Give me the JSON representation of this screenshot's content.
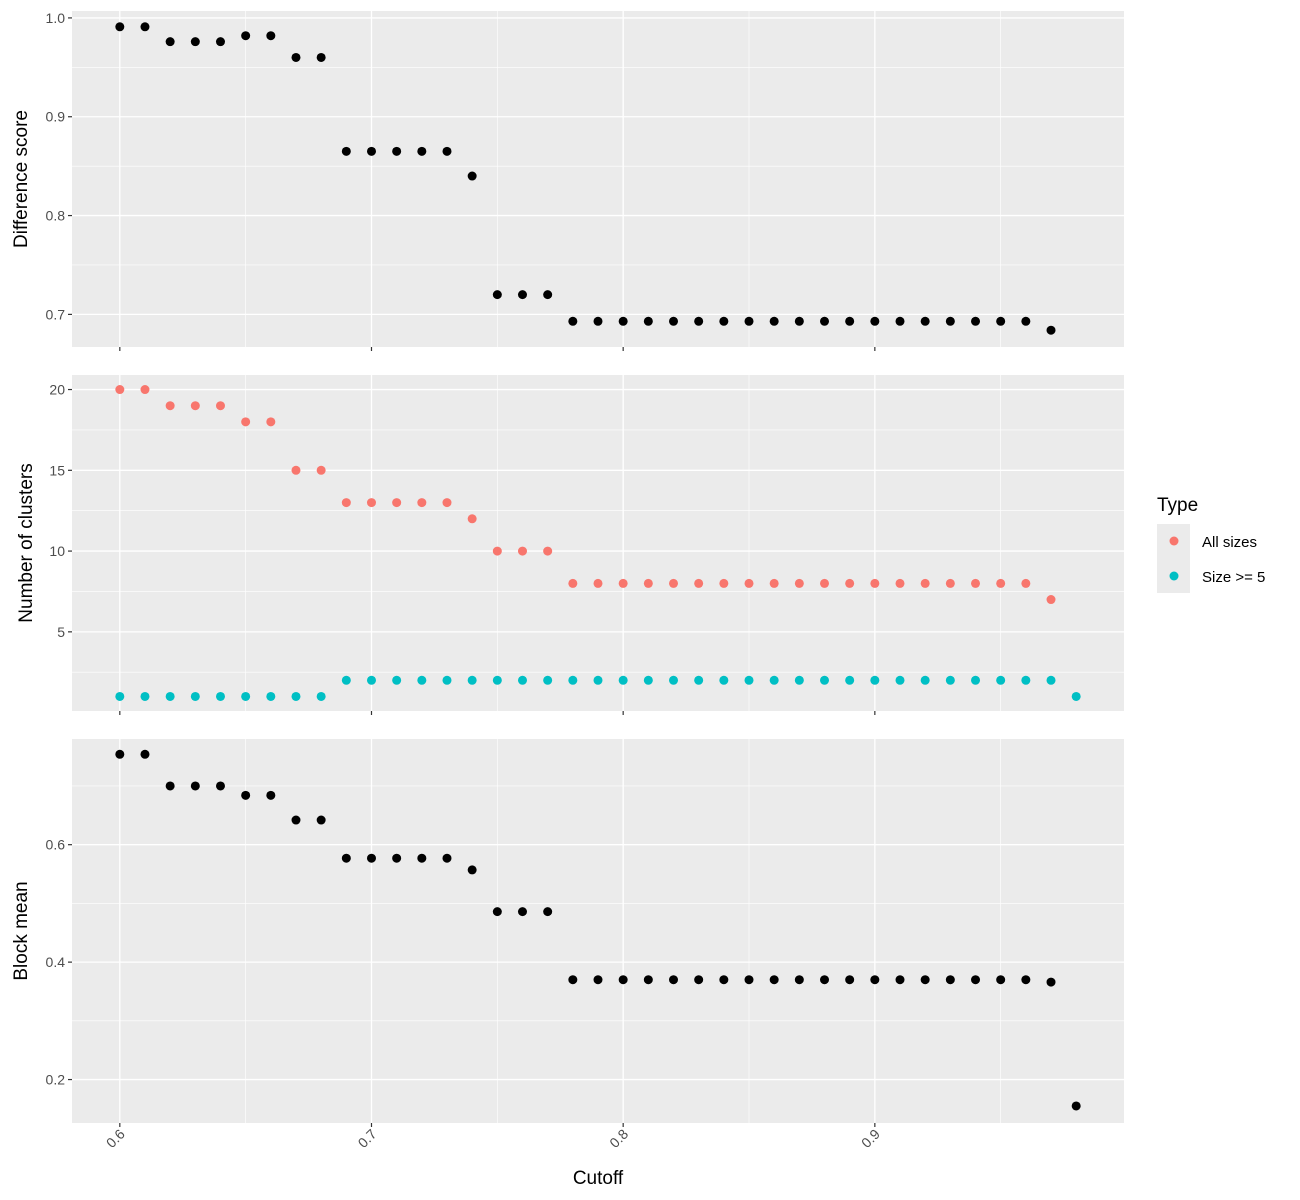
{
  "chart_data": [
    {
      "type": "scatter",
      "ylabel": "Difference score",
      "xlim": [
        0.581,
        0.999
      ],
      "ylim": [
        0.667,
        1.007
      ],
      "x_ticks": [
        "0.6",
        "0.7",
        "0.8",
        "0.9"
      ],
      "y_ticks": [
        "0.7",
        "0.8",
        "0.9",
        "1.0"
      ],
      "series": [
        {
          "color": "#000000",
          "x": [
            0.6,
            0.61,
            0.62,
            0.63,
            0.64,
            0.65,
            0.66,
            0.67,
            0.68,
            0.69,
            0.7,
            0.71,
            0.72,
            0.73,
            0.74,
            0.75,
            0.76,
            0.77,
            0.78,
            0.79,
            0.8,
            0.81,
            0.82,
            0.83,
            0.84,
            0.85,
            0.86,
            0.87,
            0.88,
            0.89,
            0.9,
            0.91,
            0.92,
            0.93,
            0.94,
            0.95,
            0.96,
            0.97
          ],
          "y": [
            0.991,
            0.991,
            0.976,
            0.976,
            0.976,
            0.982,
            0.982,
            0.96,
            0.96,
            0.865,
            0.865,
            0.865,
            0.865,
            0.865,
            0.84,
            0.72,
            0.72,
            0.72,
            0.693,
            0.693,
            0.693,
            0.693,
            0.693,
            0.693,
            0.693,
            0.693,
            0.693,
            0.693,
            0.693,
            0.693,
            0.693,
            0.693,
            0.693,
            0.693,
            0.693,
            0.693,
            0.693,
            0.684
          ]
        }
      ]
    },
    {
      "type": "scatter",
      "ylabel": "Number of clusters",
      "xlim": [
        0.581,
        0.999
      ],
      "ylim": [
        0.1,
        20.9
      ],
      "x_ticks": [
        "0.6",
        "0.7",
        "0.8",
        "0.9"
      ],
      "y_ticks": [
        "5",
        "10",
        "15",
        "20"
      ],
      "legend": {
        "title": "Type",
        "position": "right"
      },
      "series": [
        {
          "name": "All sizes",
          "color": "#F8766D",
          "x": [
            0.6,
            0.61,
            0.62,
            0.63,
            0.64,
            0.65,
            0.66,
            0.67,
            0.68,
            0.69,
            0.7,
            0.71,
            0.72,
            0.73,
            0.74,
            0.75,
            0.76,
            0.77,
            0.78,
            0.79,
            0.8,
            0.81,
            0.82,
            0.83,
            0.84,
            0.85,
            0.86,
            0.87,
            0.88,
            0.89,
            0.9,
            0.91,
            0.92,
            0.93,
            0.94,
            0.95,
            0.96,
            0.97
          ],
          "y": [
            20,
            20,
            19,
            19,
            19,
            18,
            18,
            15,
            15,
            13,
            13,
            13,
            13,
            13,
            12,
            10,
            10,
            10,
            8,
            8,
            8,
            8,
            8,
            8,
            8,
            8,
            8,
            8,
            8,
            8,
            8,
            8,
            8,
            8,
            8,
            8,
            8,
            7
          ]
        },
        {
          "name": "Size >= 5",
          "color": "#00BFC4",
          "x": [
            0.6,
            0.61,
            0.62,
            0.63,
            0.64,
            0.65,
            0.66,
            0.67,
            0.68,
            0.69,
            0.7,
            0.71,
            0.72,
            0.73,
            0.74,
            0.75,
            0.76,
            0.77,
            0.78,
            0.79,
            0.8,
            0.81,
            0.82,
            0.83,
            0.84,
            0.85,
            0.86,
            0.87,
            0.88,
            0.89,
            0.9,
            0.91,
            0.92,
            0.93,
            0.94,
            0.95,
            0.96,
            0.97,
            0.98
          ],
          "y": [
            1,
            1,
            1,
            1,
            1,
            1,
            1,
            1,
            1,
            2,
            2,
            2,
            2,
            2,
            2,
            2,
            2,
            2,
            2,
            2,
            2,
            2,
            2,
            2,
            2,
            2,
            2,
            2,
            2,
            2,
            2,
            2,
            2,
            2,
            2,
            2,
            2,
            2,
            1
          ]
        }
      ]
    },
    {
      "type": "scatter",
      "xlabel": "Cutoff",
      "ylabel": "Block mean",
      "xlim": [
        0.581,
        0.999
      ],
      "ylim": [
        0.126,
        0.78
      ],
      "x_ticks": [
        "0.6",
        "0.7",
        "0.8",
        "0.9"
      ],
      "y_ticks": [
        "0.2",
        "0.4",
        "0.6"
      ],
      "series": [
        {
          "color": "#000000",
          "x": [
            0.6,
            0.61,
            0.62,
            0.63,
            0.64,
            0.65,
            0.66,
            0.67,
            0.68,
            0.69,
            0.7,
            0.71,
            0.72,
            0.73,
            0.74,
            0.75,
            0.76,
            0.77,
            0.78,
            0.79,
            0.8,
            0.81,
            0.82,
            0.83,
            0.84,
            0.85,
            0.86,
            0.87,
            0.88,
            0.89,
            0.9,
            0.91,
            0.92,
            0.93,
            0.94,
            0.95,
            0.96,
            0.97,
            0.98
          ],
          "y": [
            0.754,
            0.754,
            0.7,
            0.7,
            0.7,
            0.684,
            0.684,
            0.642,
            0.642,
            0.577,
            0.577,
            0.577,
            0.577,
            0.577,
            0.557,
            0.486,
            0.486,
            0.486,
            0.37,
            0.37,
            0.37,
            0.37,
            0.37,
            0.37,
            0.37,
            0.37,
            0.37,
            0.37,
            0.37,
            0.37,
            0.37,
            0.37,
            0.37,
            0.37,
            0.37,
            0.37,
            0.37,
            0.366,
            0.155
          ]
        }
      ]
    }
  ]
}
